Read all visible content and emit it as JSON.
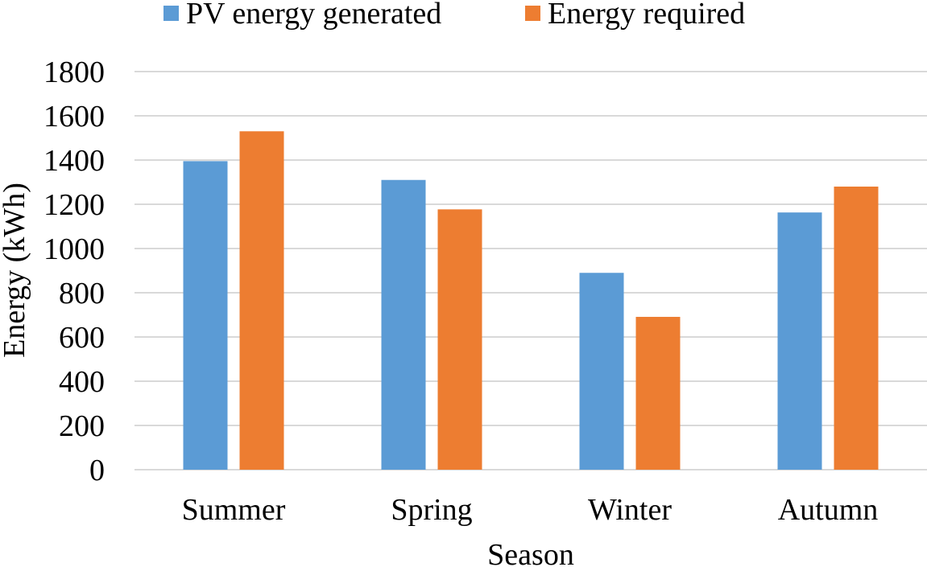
{
  "chart_data": {
    "type": "bar",
    "title": "",
    "xlabel": "Season",
    "ylabel": "Energy (kWh)",
    "categories": [
      "Summer",
      "Spring",
      "Winter",
      "Autumn"
    ],
    "series": [
      {
        "name": "PV energy generated",
        "color": "#5B9BD5",
        "values": [
          1395,
          1310,
          890,
          1163
        ]
      },
      {
        "name": "Energy required",
        "color": "#ED7D31",
        "values": [
          1530,
          1177,
          691,
          1280
        ]
      }
    ],
    "ylim": [
      0,
      1800
    ],
    "yticks": [
      0,
      200,
      400,
      600,
      800,
      1000,
      1200,
      1400,
      1600,
      1800
    ],
    "grid": true,
    "legend": "top-center"
  }
}
